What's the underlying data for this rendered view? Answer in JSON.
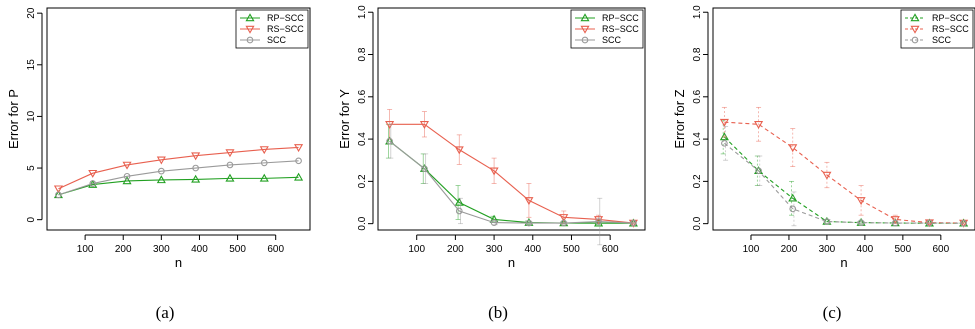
{
  "chart_data": [
    {
      "type": "line",
      "caption": "(a)",
      "xlabel": "n",
      "ylabel": "Error for P",
      "xlim": [
        0,
        690
      ],
      "ylim": [
        -1,
        20.5
      ],
      "xticks": [
        100,
        200,
        300,
        400,
        500,
        600
      ],
      "yticks": [
        0,
        5,
        10,
        15,
        20
      ],
      "x": [
        30,
        120,
        210,
        300,
        390,
        480,
        570,
        660
      ],
      "grid": false,
      "legend_position": "top-right",
      "series": [
        {
          "name": "RP−SCC",
          "color": "#22a022",
          "marker": "triangle-up",
          "dashed": false,
          "values": [
            2.4,
            3.4,
            3.75,
            3.85,
            3.9,
            4.0,
            4.0,
            4.1
          ],
          "err": [
            0.05,
            0.05,
            0.05,
            0.05,
            0.05,
            0.05,
            0.05,
            0.05
          ]
        },
        {
          "name": "RS−SCC",
          "color": "#e8604f",
          "marker": "triangle-down",
          "dashed": false,
          "values": [
            3.0,
            4.5,
            5.3,
            5.8,
            6.2,
            6.5,
            6.8,
            7.0
          ],
          "err": [
            0.05,
            0.05,
            0.05,
            0.05,
            0.05,
            0.05,
            0.05,
            0.05
          ]
        },
        {
          "name": "SCC",
          "color": "#9a9a9a",
          "marker": "circle",
          "dashed": false,
          "values": [
            2.4,
            3.5,
            4.2,
            4.7,
            5.0,
            5.3,
            5.5,
            5.7
          ],
          "err": [
            0.05,
            0.05,
            0.05,
            0.05,
            0.05,
            0.05,
            0.05,
            0.05
          ]
        }
      ]
    },
    {
      "type": "line",
      "caption": "(b)",
      "xlabel": "n",
      "ylabel": "Error for Y",
      "xlim": [
        0,
        690
      ],
      "ylim": [
        -0.03,
        1.02
      ],
      "xticks": [
        100,
        200,
        300,
        400,
        500,
        600
      ],
      "yticks": [
        0.0,
        0.2,
        0.4,
        0.6,
        0.8,
        1.0
      ],
      "ytick_labels": [
        "0.0",
        "0.2",
        "0.4",
        "0.6",
        "0.8",
        "1.0"
      ],
      "x": [
        30,
        120,
        210,
        300,
        390,
        480,
        570,
        660
      ],
      "grid": false,
      "legend_position": "top-right",
      "series": [
        {
          "name": "RP−SCC",
          "color": "#22a022",
          "marker": "triangle-up",
          "dashed": false,
          "values": [
            0.39,
            0.26,
            0.1,
            0.02,
            0.005,
            0.003,
            0.002,
            0.002
          ],
          "err": [
            0.08,
            0.07,
            0.08,
            0.015,
            0.008,
            0.005,
            0.005,
            0.004
          ]
        },
        {
          "name": "RS−SCC",
          "color": "#e8604f",
          "marker": "triangle-down",
          "dashed": false,
          "values": [
            0.47,
            0.47,
            0.35,
            0.25,
            0.11,
            0.03,
            0.02,
            0.003
          ],
          "err": [
            0.07,
            0.06,
            0.07,
            0.06,
            0.08,
            0.03,
            0.02,
            0.005
          ]
        },
        {
          "name": "SCC",
          "color": "#9a9a9a",
          "marker": "circle",
          "dashed": false,
          "values": [
            0.39,
            0.26,
            0.06,
            0.005,
            0.003,
            0.003,
            0.01,
            0.003
          ],
          "err": [
            0.08,
            0.07,
            0.06,
            0.01,
            0.005,
            0.005,
            0.11,
            0.005
          ]
        }
      ]
    },
    {
      "type": "line",
      "caption": "(c)",
      "xlabel": "n",
      "ylabel": "Error for Z",
      "xlim": [
        0,
        690
      ],
      "ylim": [
        -0.03,
        1.02
      ],
      "xticks": [
        100,
        200,
        300,
        400,
        500,
        600
      ],
      "yticks": [
        0.0,
        0.2,
        0.4,
        0.6,
        0.8,
        1.0
      ],
      "ytick_labels": [
        "0.0",
        "0.2",
        "0.4",
        "0.6",
        "0.8",
        "1.0"
      ],
      "x": [
        30,
        120,
        210,
        300,
        390,
        480,
        570,
        660
      ],
      "grid": false,
      "legend_position": "top-right",
      "series": [
        {
          "name": "RP−SCC",
          "color": "#22a022",
          "marker": "triangle-up",
          "dashed": true,
          "values": [
            0.41,
            0.25,
            0.12,
            0.01,
            0.005,
            0.003,
            0.002,
            0.002
          ],
          "err": [
            0.08,
            0.07,
            0.08,
            0.01,
            0.006,
            0.004,
            0.003,
            0.003
          ]
        },
        {
          "name": "RS−SCC",
          "color": "#e8604f",
          "marker": "triangle-down",
          "dashed": true,
          "values": [
            0.48,
            0.47,
            0.36,
            0.23,
            0.11,
            0.02,
            0.005,
            0.003
          ],
          "err": [
            0.07,
            0.08,
            0.09,
            0.06,
            0.07,
            0.02,
            0.008,
            0.005
          ]
        },
        {
          "name": "SCC",
          "color": "#9a9a9a",
          "marker": "circle",
          "dashed": true,
          "values": [
            0.38,
            0.25,
            0.07,
            0.01,
            0.005,
            0.003,
            0.003,
            0.002
          ],
          "err": [
            0.08,
            0.07,
            0.08,
            0.01,
            0.006,
            0.004,
            0.003,
            0.003
          ]
        }
      ]
    }
  ]
}
